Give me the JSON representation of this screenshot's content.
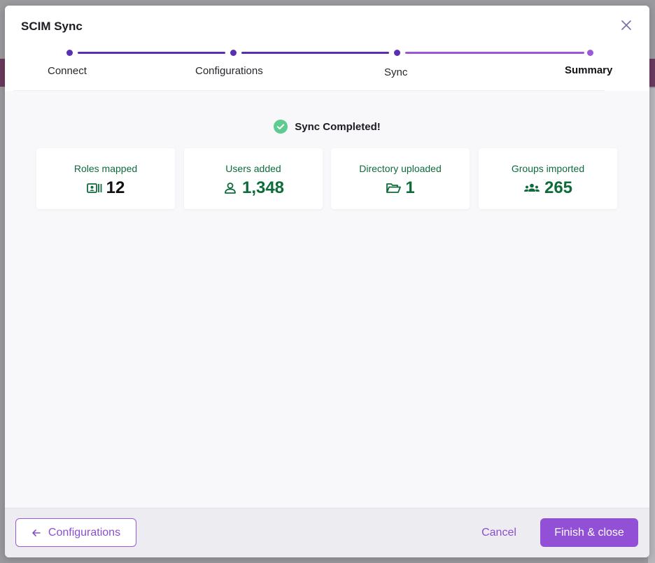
{
  "modal": {
    "title": "SCIM Sync"
  },
  "stepper": {
    "steps": [
      {
        "label": "Connect"
      },
      {
        "label": "Configurations"
      },
      {
        "label": "Sync"
      },
      {
        "label": "Summary"
      }
    ],
    "current_step": "Summary",
    "colors": {
      "completed": "#5a2eae",
      "active": "#9b56d6"
    }
  },
  "status": {
    "text": "Sync Completed!",
    "icon": "check-circle-icon",
    "color": "#5ecb8f"
  },
  "stats": [
    {
      "label": "Roles mapped",
      "value": "12",
      "icon": "id-card-icon"
    },
    {
      "label": "Users added",
      "value": "1,348",
      "icon": "user-icon"
    },
    {
      "label": "Directory uploaded",
      "value": "1",
      "icon": "folder-open-icon"
    },
    {
      "label": "Groups imported",
      "value": "265",
      "icon": "users-group-icon"
    }
  ],
  "footer": {
    "back_label": "Configurations",
    "cancel_label": "Cancel",
    "finish_label": "Finish & close"
  },
  "theme": {
    "accent": "#9150d5",
    "success_text": "#0e6b3a"
  }
}
